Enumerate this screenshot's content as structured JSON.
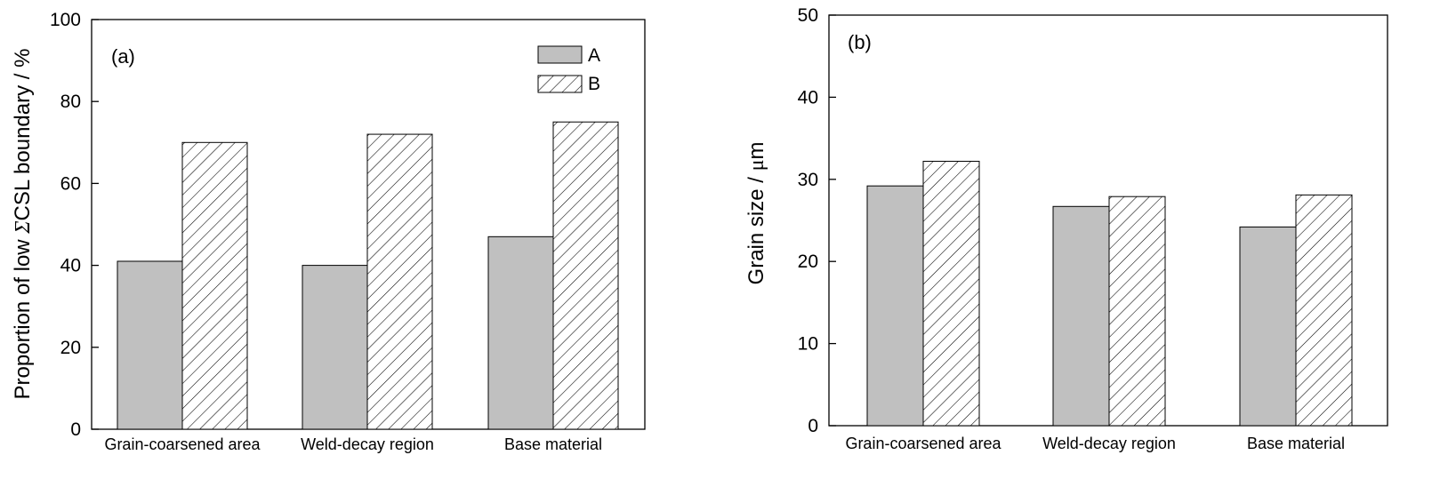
{
  "colors": {
    "series_a_fill": "#c0c0c0",
    "series_b_fill": "#ffffff",
    "hatch": "#000000",
    "axis": "#000000"
  },
  "chart_data": [
    {
      "type": "bar",
      "panel_label": "(a)",
      "ylabel_prefix": "Proportion of low ",
      "ylabel_symbol": "Σ",
      "ylabel_suffix": "CSL boundary / %",
      "xlabel": "",
      "categories": [
        "Grain-coarsened area",
        "Weld-decay region",
        "Base material"
      ],
      "ylim": [
        0,
        100
      ],
      "yticks": [
        "0",
        "20",
        "40",
        "60",
        "80",
        "100"
      ],
      "grid": false,
      "legend_position": "top-right",
      "series": [
        {
          "name": "A",
          "pattern": "solid-gray",
          "values": [
            41,
            40,
            47
          ]
        },
        {
          "name": "B",
          "pattern": "diagonal-hatch",
          "values": [
            70,
            72,
            75
          ]
        }
      ]
    },
    {
      "type": "bar",
      "panel_label": "(b)",
      "ylabel_prefix": "Grain size / ",
      "ylabel_symbol": "μ",
      "ylabel_suffix": "m",
      "xlabel": "",
      "categories": [
        "Grain-coarsened area",
        "Weld-decay region",
        "Base material"
      ],
      "ylim": [
        0,
        50
      ],
      "yticks": [
        "0",
        "10",
        "20",
        "30",
        "40",
        "50"
      ],
      "grid": false,
      "legend_position": "none",
      "series": [
        {
          "name": "",
          "pattern": "solid-gray",
          "values": [
            29.2,
            26.7,
            24.2
          ]
        },
        {
          "name": "",
          "pattern": "diagonal-hatch",
          "values": [
            32.2,
            27.9,
            28.1
          ]
        }
      ]
    }
  ]
}
